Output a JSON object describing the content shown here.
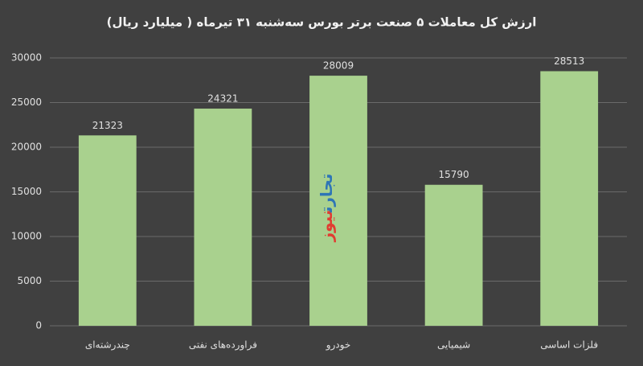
{
  "chart_data": {
    "type": "bar",
    "title": "ارزش کل معاملات ۵ صنعت برتر بورس سه‌شنبه ۳۱ تیرماه ( میلیارد ریال)",
    "categories": [
      "چندرشته‌ای",
      "فراورده‌های نفتی",
      "خودرو",
      "شیمیایی",
      "فلزات اساسی"
    ],
    "values": [
      21323,
      24321,
      28009,
      15790,
      28513
    ],
    "color": "#a9d18e",
    "ylim": [
      0,
      30000
    ],
    "yticks": [
      0,
      5000,
      10000,
      15000,
      20000,
      25000,
      30000
    ],
    "grid": true,
    "watermark": [
      "تجارت",
      "نیوز"
    ]
  }
}
